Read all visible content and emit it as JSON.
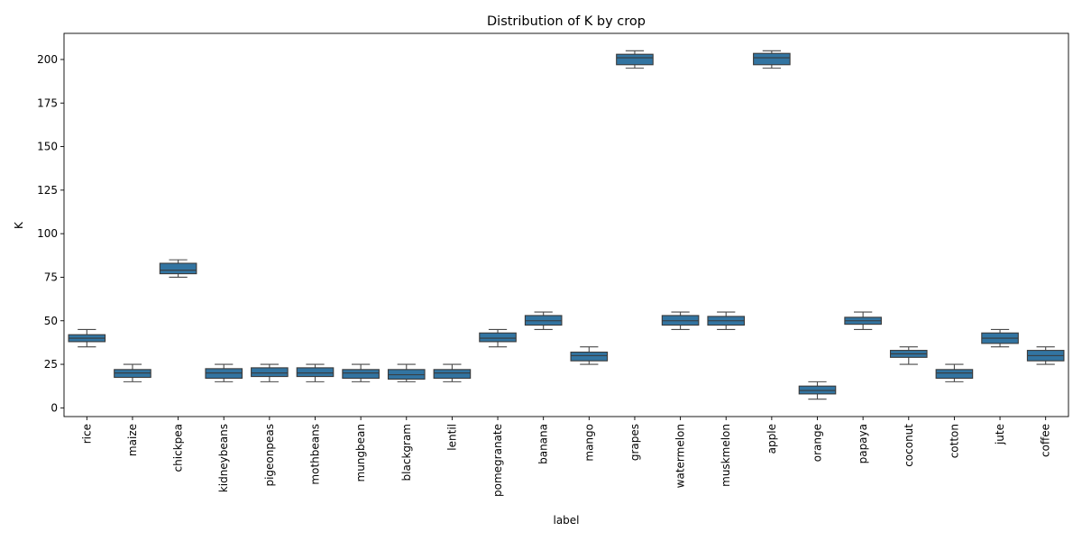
{
  "chart_data": {
    "type": "box",
    "title": "Distribution of K by crop",
    "xlabel": "label",
    "ylabel": "K",
    "ylim": [
      -5,
      215
    ],
    "yticks": [
      0,
      25,
      50,
      75,
      100,
      125,
      150,
      175,
      200
    ],
    "grid": false,
    "colors": {
      "box_fill": "#3274a1",
      "box_edge": "#3a3a3a",
      "whisker": "#4a4a4a"
    },
    "categories": [
      "rice",
      "maize",
      "chickpea",
      "kidneybeans",
      "pigeonpeas",
      "mothbeans",
      "mungbean",
      "blackgram",
      "lentil",
      "pomegranate",
      "banana",
      "mango",
      "grapes",
      "watermelon",
      "muskmelon",
      "apple",
      "orange",
      "papaya",
      "coconut",
      "cotton",
      "jute",
      "coffee"
    ],
    "series": [
      {
        "label": "rice",
        "min": 35,
        "q1": 38,
        "median": 40,
        "q3": 42,
        "max": 45
      },
      {
        "label": "maize",
        "min": 15,
        "q1": 17.5,
        "median": 20,
        "q3": 22,
        "max": 25
      },
      {
        "label": "chickpea",
        "min": 75,
        "q1": 77,
        "median": 79,
        "q3": 83,
        "max": 85
      },
      {
        "label": "kidneybeans",
        "min": 15,
        "q1": 17,
        "median": 20,
        "q3": 22.5,
        "max": 25
      },
      {
        "label": "pigeonpeas",
        "min": 15,
        "q1": 18,
        "median": 20,
        "q3": 23,
        "max": 25
      },
      {
        "label": "mothbeans",
        "min": 15,
        "q1": 18,
        "median": 20,
        "q3": 23,
        "max": 25
      },
      {
        "label": "mungbean",
        "min": 15,
        "q1": 17,
        "median": 20,
        "q3": 22,
        "max": 25
      },
      {
        "label": "blackgram",
        "min": 15,
        "q1": 16.5,
        "median": 19,
        "q3": 22,
        "max": 25
      },
      {
        "label": "lentil",
        "min": 15,
        "q1": 17,
        "median": 20,
        "q3": 22,
        "max": 25
      },
      {
        "label": "pomegranate",
        "min": 35,
        "q1": 38,
        "median": 40,
        "q3": 43,
        "max": 45
      },
      {
        "label": "banana",
        "min": 45,
        "q1": 47.5,
        "median": 50,
        "q3": 53,
        "max": 55
      },
      {
        "label": "mango",
        "min": 25,
        "q1": 27,
        "median": 30,
        "q3": 32,
        "max": 35
      },
      {
        "label": "grapes",
        "min": 195,
        "q1": 197,
        "median": 201,
        "q3": 203,
        "max": 205
      },
      {
        "label": "watermelon",
        "min": 45,
        "q1": 47.5,
        "median": 50,
        "q3": 53,
        "max": 55
      },
      {
        "label": "muskmelon",
        "min": 45,
        "q1": 47.5,
        "median": 50,
        "q3": 52.5,
        "max": 55
      },
      {
        "label": "apple",
        "min": 195,
        "q1": 197,
        "median": 201,
        "q3": 203.5,
        "max": 205
      },
      {
        "label": "orange",
        "min": 5,
        "q1": 8,
        "median": 10,
        "q3": 12.5,
        "max": 15
      },
      {
        "label": "papaya",
        "min": 45,
        "q1": 48,
        "median": 50,
        "q3": 52,
        "max": 55
      },
      {
        "label": "coconut",
        "min": 25,
        "q1": 29,
        "median": 31,
        "q3": 33,
        "max": 35
      },
      {
        "label": "cotton",
        "min": 15,
        "q1": 17,
        "median": 20,
        "q3": 22,
        "max": 25
      },
      {
        "label": "jute",
        "min": 35,
        "q1": 37,
        "median": 40,
        "q3": 43,
        "max": 45
      },
      {
        "label": "coffee",
        "min": 25,
        "q1": 27,
        "median": 30,
        "q3": 33,
        "max": 35
      }
    ]
  }
}
